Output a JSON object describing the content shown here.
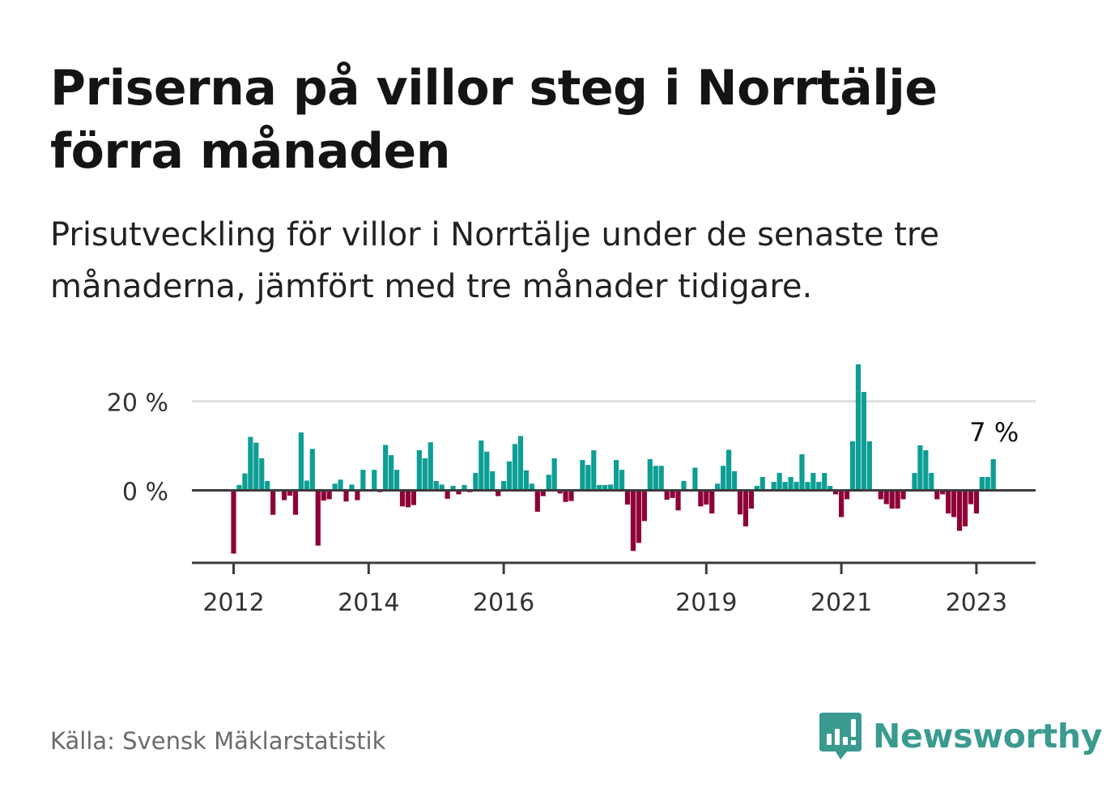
{
  "header": {
    "title": "Priserna på villor steg i Norrtälje förra månaden",
    "subtitle": "Prisutveckling för villor i Norrtälje under de senaste tre månaderna, jämfört med tre månader tidigare."
  },
  "footer": {
    "source": "Källa: Svensk Mäklarstatistik",
    "logo_text": "Newsworthy"
  },
  "colors": {
    "positive": "#0d9e95",
    "negative": "#8e0038",
    "axis": "#3c3c3c",
    "grid": "#e0e0e0",
    "logo": "#3a9a8f"
  },
  "chart_data": {
    "type": "bar",
    "title": "Priserna på villor steg i Norrtälje förra månaden",
    "subtitle": "Prisutveckling för villor i Norrtälje under de senaste tre månaderna, jämfört med tre månader tidigare.",
    "xlabel": "",
    "ylabel": "",
    "x_start": "2012-01",
    "x_end": "2023-04",
    "frequency": "monthly",
    "unit": "%",
    "ylim": [
      -16,
      29
    ],
    "yticks": [
      0,
      20
    ],
    "ytick_labels": [
      "0 %",
      "20 %"
    ],
    "xtick_labels": [
      "2012",
      "2014",
      "2016",
      "2019",
      "2021",
      "2023"
    ],
    "grid": true,
    "annotation": "7 %",
    "values": [
      -14.2,
      1.2,
      3.8,
      12.0,
      10.7,
      7.2,
      2.1,
      -5.5,
      0,
      -2.2,
      -1.2,
      -5.5,
      13.0,
      2.2,
      9.3,
      -12.4,
      -2.3,
      -2.0,
      1.5,
      2.4,
      -2.5,
      1.3,
      -2.2,
      4.6,
      0,
      4.6,
      -0.4,
      10.2,
      7.9,
      4.6,
      -3.6,
      -3.8,
      -3.3,
      9.0,
      7.2,
      10.8,
      2.1,
      1.3,
      -1.9,
      1.0,
      -0.9,
      1.2,
      -0.4,
      3.9,
      11.2,
      8.7,
      4.3,
      -1.3,
      2.1,
      6.5,
      10.4,
      12.2,
      4.5,
      1.5,
      -4.8,
      -1.3,
      3.5,
      7.2,
      -0.7,
      -2.6,
      -2.4,
      0.3,
      6.8,
      5.7,
      9.0,
      1.2,
      1.2,
      1.3,
      6.8,
      4.6,
      -3.2,
      -13.6,
      -11.8,
      -6.9,
      7.0,
      5.5,
      5.5,
      -2.1,
      -1.7,
      -4.5,
      2.1,
      0,
      5.1,
      -3.6,
      -3.2,
      -5.2,
      1.5,
      5.5,
      9.1,
      4.3,
      -5.4,
      -8.1,
      -4.1,
      1.0,
      3.0,
      0,
      1.9,
      3.9,
      1.9,
      3.0,
      1.9,
      8.1,
      1.9,
      3.9,
      1.9,
      3.9,
      1.0,
      -0.9,
      -6.0,
      -2.0,
      11.0,
      28.3,
      22.1,
      11.0,
      0,
      -2.0,
      -3.1,
      -4.1,
      -4.1,
      -2.0,
      0,
      3.9,
      10.1,
      9.0,
      3.9,
      -2.0,
      -0.9,
      -5.2,
      -6.0,
      -9.1,
      -8.1,
      -3.1,
      -5.2,
      3.0,
      3.0,
      7.0
    ]
  }
}
